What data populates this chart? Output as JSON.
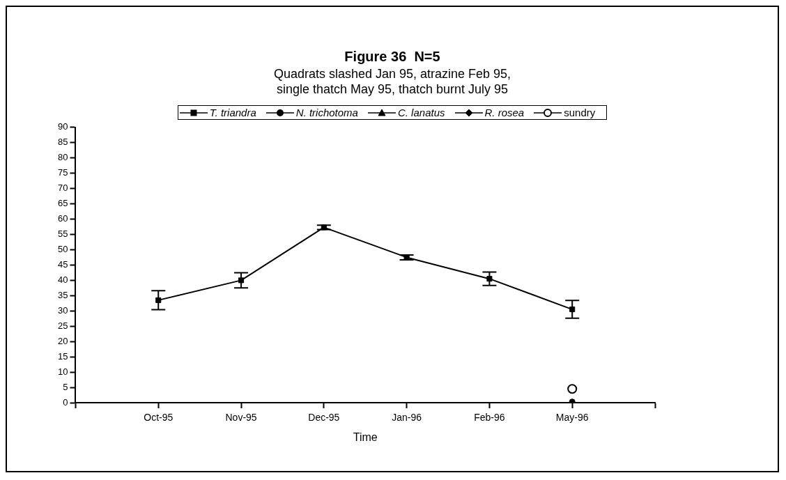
{
  "chart_data": {
    "type": "line",
    "title": "Figure 36  N=5",
    "subtitle": "Quadrats slashed Jan 95, atrazine Feb 95, single thatch May 95, thatch burnt July 95",
    "xlabel": "Time",
    "categories": [
      null,
      "Oct-95",
      "Nov-95",
      "Dec-95",
      "Jan-96",
      "Feb-96",
      "May-96",
      null
    ],
    "series": [
      {
        "name": "T. triandra",
        "color": "#000000",
        "marker": "square",
        "values": [
          null,
          33.5,
          40,
          57.3,
          47.5,
          40.5,
          30.5,
          null
        ],
        "errors": [
          null,
          3.1,
          2.5,
          0.7,
          0.8,
          2.2,
          2.9,
          null
        ]
      },
      {
        "name": "N. trichotoma",
        "color": "#000000",
        "marker": "circle",
        "values": [
          null,
          null,
          null,
          null,
          null,
          null,
          0.3,
          null
        ]
      },
      {
        "name": "C. lanatus",
        "color": "#000000",
        "marker": "triangle",
        "values": [
          null,
          null,
          null,
          null,
          null,
          null,
          null,
          null
        ]
      },
      {
        "name": "R. rosea",
        "color": "#000000",
        "marker": "diamond",
        "values": [
          null,
          null,
          null,
          null,
          null,
          null,
          null,
          null
        ]
      },
      {
        "name": "sundry",
        "color": "#000000",
        "marker": "open circle",
        "values": [
          null,
          null,
          null,
          null,
          null,
          null,
          4.5,
          null
        ]
      }
    ],
    "ylim": [
      0,
      90
    ],
    "yticks": [
      0,
      5,
      10,
      15,
      20,
      25,
      30,
      35,
      40,
      45,
      50,
      55,
      60,
      65,
      70,
      75,
      80,
      85,
      90
    ],
    "grid": false,
    "legend": "top"
  }
}
